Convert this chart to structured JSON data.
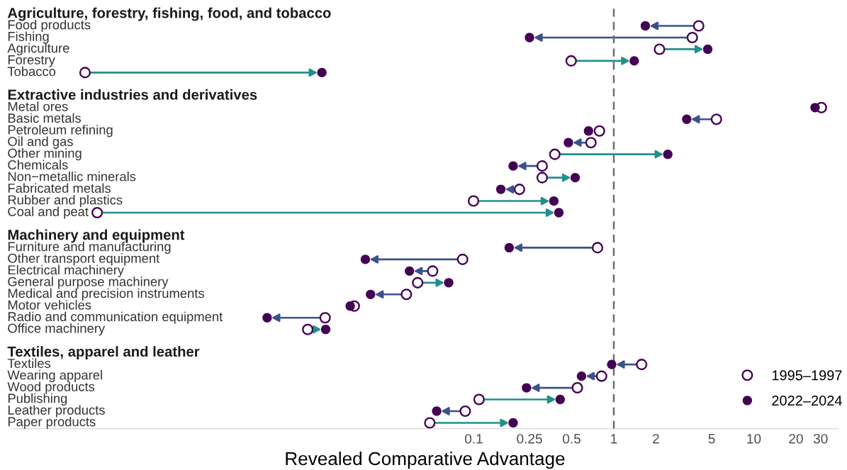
{
  "chart_data": {
    "type": "scatter",
    "orientation": "horizontal",
    "log": "x",
    "marker": "circle",
    "legend": "bottom right",
    "xlabel": "Revealed Comparative Advantage",
    "xlim": [
      5e-05,
      40
    ],
    "xticks": [
      0.1,
      0.25,
      0.5,
      1,
      2,
      5,
      10,
      20,
      30
    ],
    "ref_lines": [
      {
        "axis": "x",
        "value": 1,
        "color": "#6e6e6e",
        "line_style": "dashed"
      }
    ],
    "categories": [
      "Agriculture, forestry, fishing, food, and tobacco",
      "Food products",
      "Fishing",
      "Agriculture",
      "Forestry",
      "Tobacco",
      null,
      "Extractive industries and derivatives",
      "Metal ores",
      "Basic metals",
      "Petroleum refining",
      "Oil and gas",
      "Other mining",
      "Chemicals",
      "Non−metallic minerals",
      "Fabricated metals",
      "Rubber and plastics",
      "Coal and peat",
      null,
      "Machinery and equipment",
      "Furniture and manufacturing",
      "Other transport equipment",
      "Electrical machinery",
      "General purpose machinery",
      "Medical and precision instruments",
      "Motor vehicles",
      "Radio and communication equipment",
      "Office machinery",
      null,
      "Textiles, apparel and leather",
      "Textiles",
      "Wearing apparel",
      "Wood products",
      "Publishing",
      "Leather products",
      "Paper products"
    ],
    "series": [
      {
        "name": "1995–1997",
        "color": "#440154",
        "values": [
          null,
          4.04,
          3.64,
          2.12,
          0.496,
          0.000167,
          null,
          null,
          30.4,
          5.41,
          0.79,
          0.687,
          0.379,
          0.308,
          0.308,
          0.212,
          0.0995,
          0.000204,
          null,
          null,
          0.765,
          0.0832,
          0.0508,
          0.0397,
          0.033,
          0.014,
          0.00867,
          0.00651,
          null,
          null,
          1.58,
          0.818,
          0.549,
          0.109,
          0.0869,
          0.0485
        ]
      },
      {
        "name": "2022–2024",
        "color": "#440154",
        "values": [
          null,
          1.68,
          0.25,
          4.69,
          1.4,
          0.00822,
          null,
          null,
          27.4,
          3.32,
          0.66,
          0.474,
          2.43,
          0.191,
          0.53,
          0.156,
          0.373,
          0.405,
          null,
          null,
          0.179,
          0.0168,
          0.0347,
          0.0662,
          0.0183,
          0.0131,
          0.00334,
          0.00875,
          null,
          null,
          0.966,
          0.588,
          0.238,
          0.414,
          0.0543,
          0.191
        ]
      }
    ],
    "colors": [
      null,
      "#3b528b",
      "#3b528b",
      "#21908c",
      "#21908c",
      "#21908c",
      null,
      null,
      "#3b528b",
      "#3b528b",
      "#3b528b",
      "#3b528b",
      "#21908c",
      "#3b528b",
      "#21908c",
      "#3b528b",
      "#21908c",
      "#21908c",
      null,
      null,
      "#3b528b",
      "#3b528b",
      "#3b528b",
      "#21908c",
      "#3b528b",
      "#3b528b",
      "#3b528b",
      "#21908c",
      null,
      null,
      "#3b528b",
      "#3b528b",
      "#3b528b",
      "#21908c",
      "#3b528b",
      "#21908c"
    ]
  }
}
